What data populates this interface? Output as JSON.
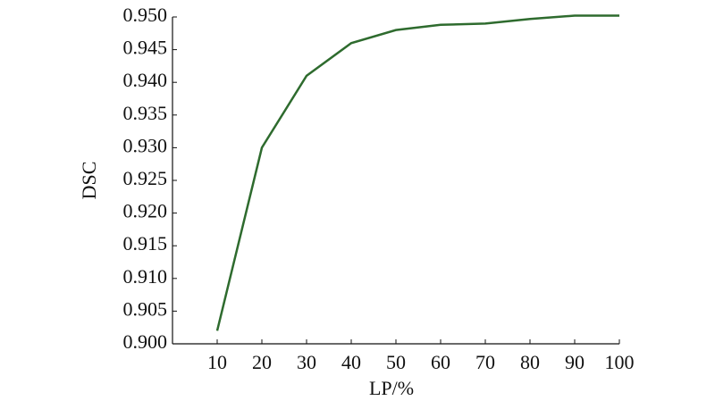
{
  "chart_data": {
    "type": "line",
    "x_label": "LP/%",
    "y_label": "DSC",
    "x": [
      10,
      20,
      30,
      40,
      50,
      60,
      70,
      80,
      90,
      100
    ],
    "series": [
      {
        "color": "#2e6b2e",
        "values": [
          0.902,
          0.93,
          0.941,
          0.946,
          0.948,
          0.9488,
          0.949,
          0.9497,
          0.9502,
          0.9502
        ]
      }
    ],
    "xlim": [
      0,
      100
    ],
    "xticks": [
      10,
      20,
      30,
      40,
      50,
      60,
      70,
      80,
      90,
      100
    ],
    "ylim": [
      0.9,
      0.95
    ],
    "yticks": [
      {
        "value": 0.9,
        "label": "0.900"
      },
      {
        "value": 0.905,
        "label": "0.905"
      },
      {
        "value": 0.91,
        "label": "0.910"
      },
      {
        "value": 0.915,
        "label": "0.915"
      },
      {
        "value": 0.92,
        "label": "0.920"
      },
      {
        "value": 0.925,
        "label": "0.925"
      },
      {
        "value": 0.93,
        "label": "0.930"
      },
      {
        "value": 0.935,
        "label": "0.935"
      },
      {
        "value": 0.94,
        "label": "0.940"
      },
      {
        "value": 0.945,
        "label": "0.945"
      },
      {
        "value": 0.95,
        "label": "0.950"
      }
    ]
  }
}
